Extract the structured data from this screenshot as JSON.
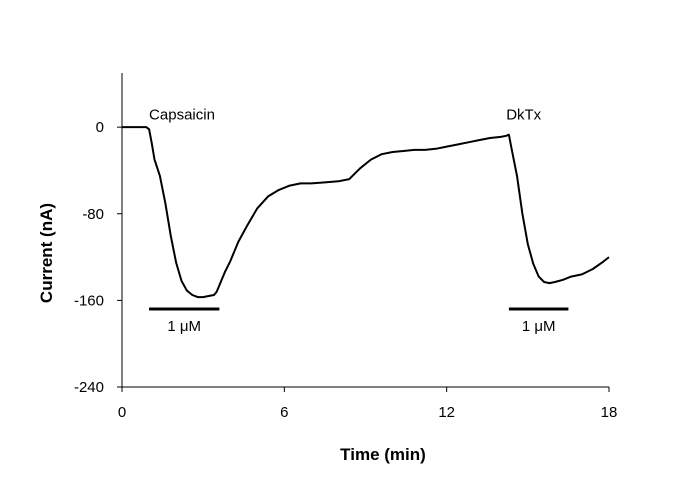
{
  "chart_data": {
    "type": "line",
    "title": "",
    "xlabel": "Time (min)",
    "ylabel": "Current (nA)",
    "xlim": [
      0,
      18
    ],
    "ylim": [
      -240,
      50
    ],
    "xticks": [
      0,
      6,
      12,
      18
    ],
    "yticks": [
      0,
      -80,
      -160,
      -240
    ],
    "grid": false,
    "legend": "none",
    "line_color": "#000000",
    "series": [
      {
        "x": [
          0,
          0.5,
          0.9,
          1.0,
          1.1,
          1.2,
          1.4,
          1.6,
          1.8,
          2.0,
          2.2,
          2.4,
          2.6,
          2.8,
          3.0,
          3.2,
          3.4,
          3.5,
          3.6,
          3.8,
          4.0,
          4.3,
          4.6,
          5.0,
          5.4,
          5.8,
          6.2,
          6.6,
          7.0,
          7.5,
          8.0,
          8.4,
          8.8,
          9.2,
          9.6,
          10.0,
          10.4,
          10.8,
          11.2,
          11.6,
          12.0,
          12.4,
          12.8,
          13.2,
          13.6,
          14.0,
          14.2,
          14.3,
          14.4,
          14.6,
          14.8,
          15.0,
          15.2,
          15.4,
          15.6,
          15.8,
          16.0,
          16.3,
          16.6,
          17.0,
          17.4,
          17.8,
          18.0
        ],
        "y": [
          0,
          0,
          0,
          -2,
          -15,
          -30,
          -45,
          -70,
          -100,
          -125,
          -142,
          -151,
          -155,
          -157,
          -157,
          -156,
          -155,
          -152,
          -146,
          -134,
          -124,
          -106,
          -92,
          -75,
          -64,
          -58,
          -54,
          -52,
          -52,
          -51,
          -50,
          -48,
          -38,
          -30,
          -25,
          -23,
          -22,
          -21,
          -21,
          -20,
          -18,
          -16,
          -14,
          -12,
          -10,
          -9,
          -8,
          -7,
          -20,
          -45,
          -80,
          -108,
          -126,
          -138,
          -143,
          -144,
          -143,
          -141,
          -138,
          -136,
          -131,
          -124,
          -120
        ]
      }
    ],
    "annotations": [
      {
        "text": "Capsaicin",
        "x": 1.0,
        "y": 7
      },
      {
        "text": "DkTx",
        "x": 14.2,
        "y": 7
      }
    ],
    "bars": [
      {
        "label": "1 μM",
        "x_start": 1.0,
        "x_end": 3.6,
        "y": -168
      },
      {
        "label": "1 μM",
        "x_start": 14.3,
        "x_end": 16.5,
        "y": -168
      }
    ]
  }
}
